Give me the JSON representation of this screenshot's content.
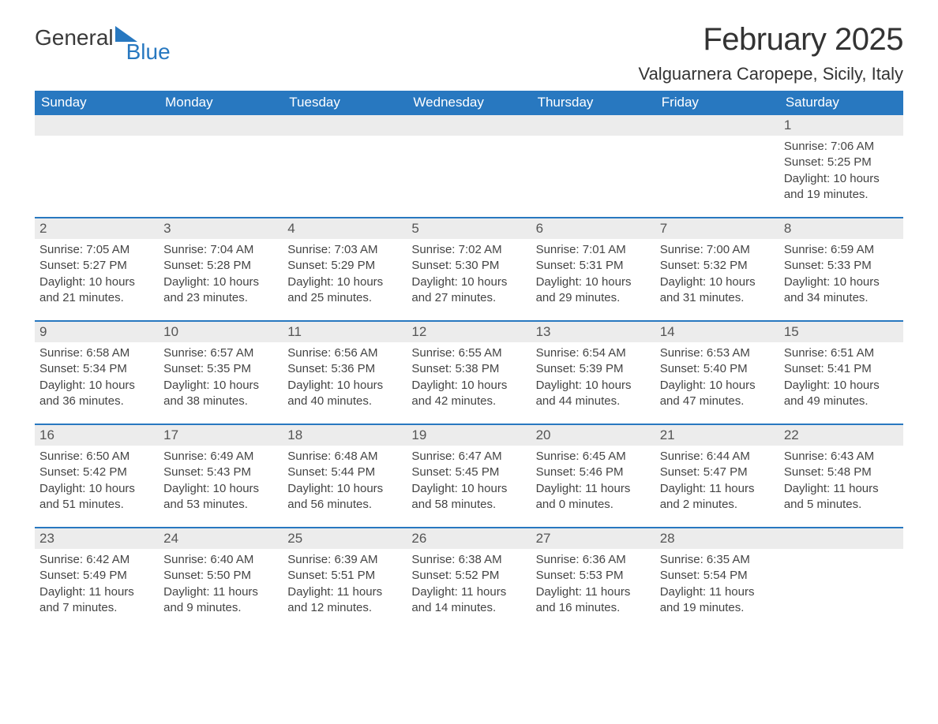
{
  "brand": {
    "text1": "General",
    "text2": "Blue"
  },
  "colors": {
    "header_bg": "#2878c0",
    "header_text": "#ffffff",
    "row_stripe": "#ececec",
    "border": "#2878c0",
    "page_bg": "#ffffff",
    "text": "#333333"
  },
  "typography": {
    "title_fontsize": 40,
    "location_fontsize": 22,
    "header_fontsize": 17,
    "daynum_fontsize": 17,
    "info_fontsize": 15
  },
  "title": "February 2025",
  "location": "Valguarnera Caropepe, Sicily, Italy",
  "day_headers": [
    "Sunday",
    "Monday",
    "Tuesday",
    "Wednesday",
    "Thursday",
    "Friday",
    "Saturday"
  ],
  "weeks": [
    [
      null,
      null,
      null,
      null,
      null,
      null,
      {
        "n": "1",
        "sr": "Sunrise: 7:06 AM",
        "ss": "Sunset: 5:25 PM",
        "dl": "Daylight: 10 hours and 19 minutes."
      }
    ],
    [
      {
        "n": "2",
        "sr": "Sunrise: 7:05 AM",
        "ss": "Sunset: 5:27 PM",
        "dl": "Daylight: 10 hours and 21 minutes."
      },
      {
        "n": "3",
        "sr": "Sunrise: 7:04 AM",
        "ss": "Sunset: 5:28 PM",
        "dl": "Daylight: 10 hours and 23 minutes."
      },
      {
        "n": "4",
        "sr": "Sunrise: 7:03 AM",
        "ss": "Sunset: 5:29 PM",
        "dl": "Daylight: 10 hours and 25 minutes."
      },
      {
        "n": "5",
        "sr": "Sunrise: 7:02 AM",
        "ss": "Sunset: 5:30 PM",
        "dl": "Daylight: 10 hours and 27 minutes."
      },
      {
        "n": "6",
        "sr": "Sunrise: 7:01 AM",
        "ss": "Sunset: 5:31 PM",
        "dl": "Daylight: 10 hours and 29 minutes."
      },
      {
        "n": "7",
        "sr": "Sunrise: 7:00 AM",
        "ss": "Sunset: 5:32 PM",
        "dl": "Daylight: 10 hours and 31 minutes."
      },
      {
        "n": "8",
        "sr": "Sunrise: 6:59 AM",
        "ss": "Sunset: 5:33 PM",
        "dl": "Daylight: 10 hours and 34 minutes."
      }
    ],
    [
      {
        "n": "9",
        "sr": "Sunrise: 6:58 AM",
        "ss": "Sunset: 5:34 PM",
        "dl": "Daylight: 10 hours and 36 minutes."
      },
      {
        "n": "10",
        "sr": "Sunrise: 6:57 AM",
        "ss": "Sunset: 5:35 PM",
        "dl": "Daylight: 10 hours and 38 minutes."
      },
      {
        "n": "11",
        "sr": "Sunrise: 6:56 AM",
        "ss": "Sunset: 5:36 PM",
        "dl": "Daylight: 10 hours and 40 minutes."
      },
      {
        "n": "12",
        "sr": "Sunrise: 6:55 AM",
        "ss": "Sunset: 5:38 PM",
        "dl": "Daylight: 10 hours and 42 minutes."
      },
      {
        "n": "13",
        "sr": "Sunrise: 6:54 AM",
        "ss": "Sunset: 5:39 PM",
        "dl": "Daylight: 10 hours and 44 minutes."
      },
      {
        "n": "14",
        "sr": "Sunrise: 6:53 AM",
        "ss": "Sunset: 5:40 PM",
        "dl": "Daylight: 10 hours and 47 minutes."
      },
      {
        "n": "15",
        "sr": "Sunrise: 6:51 AM",
        "ss": "Sunset: 5:41 PM",
        "dl": "Daylight: 10 hours and 49 minutes."
      }
    ],
    [
      {
        "n": "16",
        "sr": "Sunrise: 6:50 AM",
        "ss": "Sunset: 5:42 PM",
        "dl": "Daylight: 10 hours and 51 minutes."
      },
      {
        "n": "17",
        "sr": "Sunrise: 6:49 AM",
        "ss": "Sunset: 5:43 PM",
        "dl": "Daylight: 10 hours and 53 minutes."
      },
      {
        "n": "18",
        "sr": "Sunrise: 6:48 AM",
        "ss": "Sunset: 5:44 PM",
        "dl": "Daylight: 10 hours and 56 minutes."
      },
      {
        "n": "19",
        "sr": "Sunrise: 6:47 AM",
        "ss": "Sunset: 5:45 PM",
        "dl": "Daylight: 10 hours and 58 minutes."
      },
      {
        "n": "20",
        "sr": "Sunrise: 6:45 AM",
        "ss": "Sunset: 5:46 PM",
        "dl": "Daylight: 11 hours and 0 minutes."
      },
      {
        "n": "21",
        "sr": "Sunrise: 6:44 AM",
        "ss": "Sunset: 5:47 PM",
        "dl": "Daylight: 11 hours and 2 minutes."
      },
      {
        "n": "22",
        "sr": "Sunrise: 6:43 AM",
        "ss": "Sunset: 5:48 PM",
        "dl": "Daylight: 11 hours and 5 minutes."
      }
    ],
    [
      {
        "n": "23",
        "sr": "Sunrise: 6:42 AM",
        "ss": "Sunset: 5:49 PM",
        "dl": "Daylight: 11 hours and 7 minutes."
      },
      {
        "n": "24",
        "sr": "Sunrise: 6:40 AM",
        "ss": "Sunset: 5:50 PM",
        "dl": "Daylight: 11 hours and 9 minutes."
      },
      {
        "n": "25",
        "sr": "Sunrise: 6:39 AM",
        "ss": "Sunset: 5:51 PM",
        "dl": "Daylight: 11 hours and 12 minutes."
      },
      {
        "n": "26",
        "sr": "Sunrise: 6:38 AM",
        "ss": "Sunset: 5:52 PM",
        "dl": "Daylight: 11 hours and 14 minutes."
      },
      {
        "n": "27",
        "sr": "Sunrise: 6:36 AM",
        "ss": "Sunset: 5:53 PM",
        "dl": "Daylight: 11 hours and 16 minutes."
      },
      {
        "n": "28",
        "sr": "Sunrise: 6:35 AM",
        "ss": "Sunset: 5:54 PM",
        "dl": "Daylight: 11 hours and 19 minutes."
      },
      null
    ]
  ]
}
